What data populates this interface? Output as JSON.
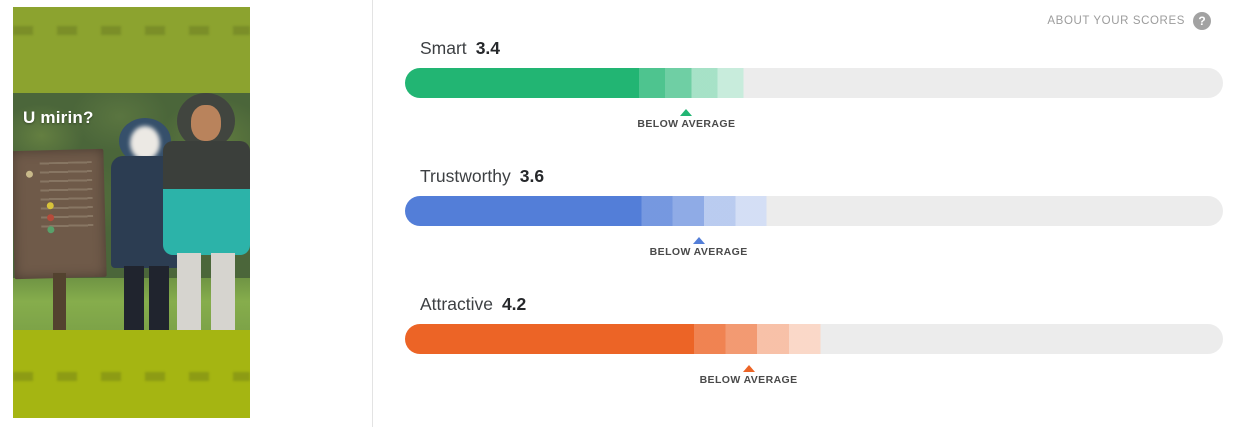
{
  "header": {
    "about_label": "ABOUT YOUR SCORES",
    "help_glyph": "?"
  },
  "photo": {
    "overlay_text": "U mirin?",
    "band_color_top": "#8ca32f",
    "band_color_bottom": "#a5b512"
  },
  "bar_style": {
    "track_color": "#ececec",
    "fade_alphas": [
      0.8,
      0.65,
      0.4,
      0.25
    ]
  },
  "traits": [
    {
      "label": "Smart",
      "score": "3.4",
      "marker_caption": "BELOW AVERAGE",
      "color": "#22b573",
      "solid_pct": 28.6,
      "fade_end_pct": 41.4,
      "marker_pct": 34.4
    },
    {
      "label": "Trustworthy",
      "score": "3.6",
      "marker_caption": "BELOW AVERAGE",
      "color": "#537ed8",
      "solid_pct": 28.9,
      "fade_end_pct": 44.2,
      "marker_pct": 35.9
    },
    {
      "label": "Attractive",
      "score": "4.2",
      "marker_caption": "BELOW AVERAGE",
      "color": "#ec6426",
      "solid_pct": 35.3,
      "fade_end_pct": 50.8,
      "marker_pct": 42.0
    }
  ]
}
